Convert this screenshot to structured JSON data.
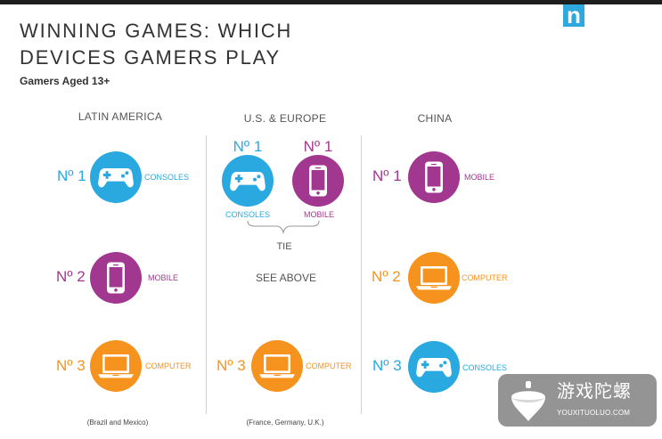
{
  "logo": {
    "text": "n",
    "icon": "nielsen-logo"
  },
  "title": {
    "line1": "WINNING GAMES: WHICH",
    "line2": "DEVICES GAMERS PLAY"
  },
  "subtitle": "Gamers Aged 13+",
  "colors": {
    "consoles": "#2aa8e0",
    "mobile": "#a2378f",
    "computer": "#f6931e",
    "logo": "#2fa7df",
    "topbar": "#1d1d1d",
    "title": "#333333",
    "divider": "#d2d2d2"
  },
  "regions": [
    {
      "name": "LATIN AMERICA",
      "note": "(Brazil and Mexico)",
      "ranks": [
        {
          "rank": "Nº 1",
          "device": "CONSOLES",
          "icon": "gamepad-icon"
        },
        {
          "rank": "Nº 2",
          "device": "MOBILE",
          "icon": "mobile-phone-icon"
        },
        {
          "rank": "Nº 3",
          "device": "COMPUTER",
          "icon": "laptop-icon"
        }
      ]
    },
    {
      "name": "U.S. & EUROPE",
      "note": "(France, Germany, U.K.)",
      "ranks": [
        {
          "rank": "Nº 1",
          "device": "CONSOLES",
          "icon": "gamepad-icon"
        },
        {
          "rank": "Nº 1",
          "device": "MOBILE",
          "icon": "mobile-phone-icon"
        },
        {
          "rank": "Nº 3",
          "device": "COMPUTER",
          "icon": "laptop-icon"
        }
      ],
      "tie_label": "TIE",
      "second_place": "SEE ABOVE"
    },
    {
      "name": "CHINA",
      "ranks": [
        {
          "rank": "Nº 1",
          "device": "MOBILE",
          "icon": "mobile-phone-icon"
        },
        {
          "rank": "Nº 2",
          "device": "COMPUTER",
          "icon": "laptop-icon"
        },
        {
          "rank": "Nº 3",
          "device": "CONSOLES",
          "icon": "gamepad-icon"
        }
      ]
    }
  ],
  "watermark": {
    "text": "游戏陀螺",
    "url": "YOUXITUOLUO.COM",
    "icon": "spinning-top-icon"
  }
}
